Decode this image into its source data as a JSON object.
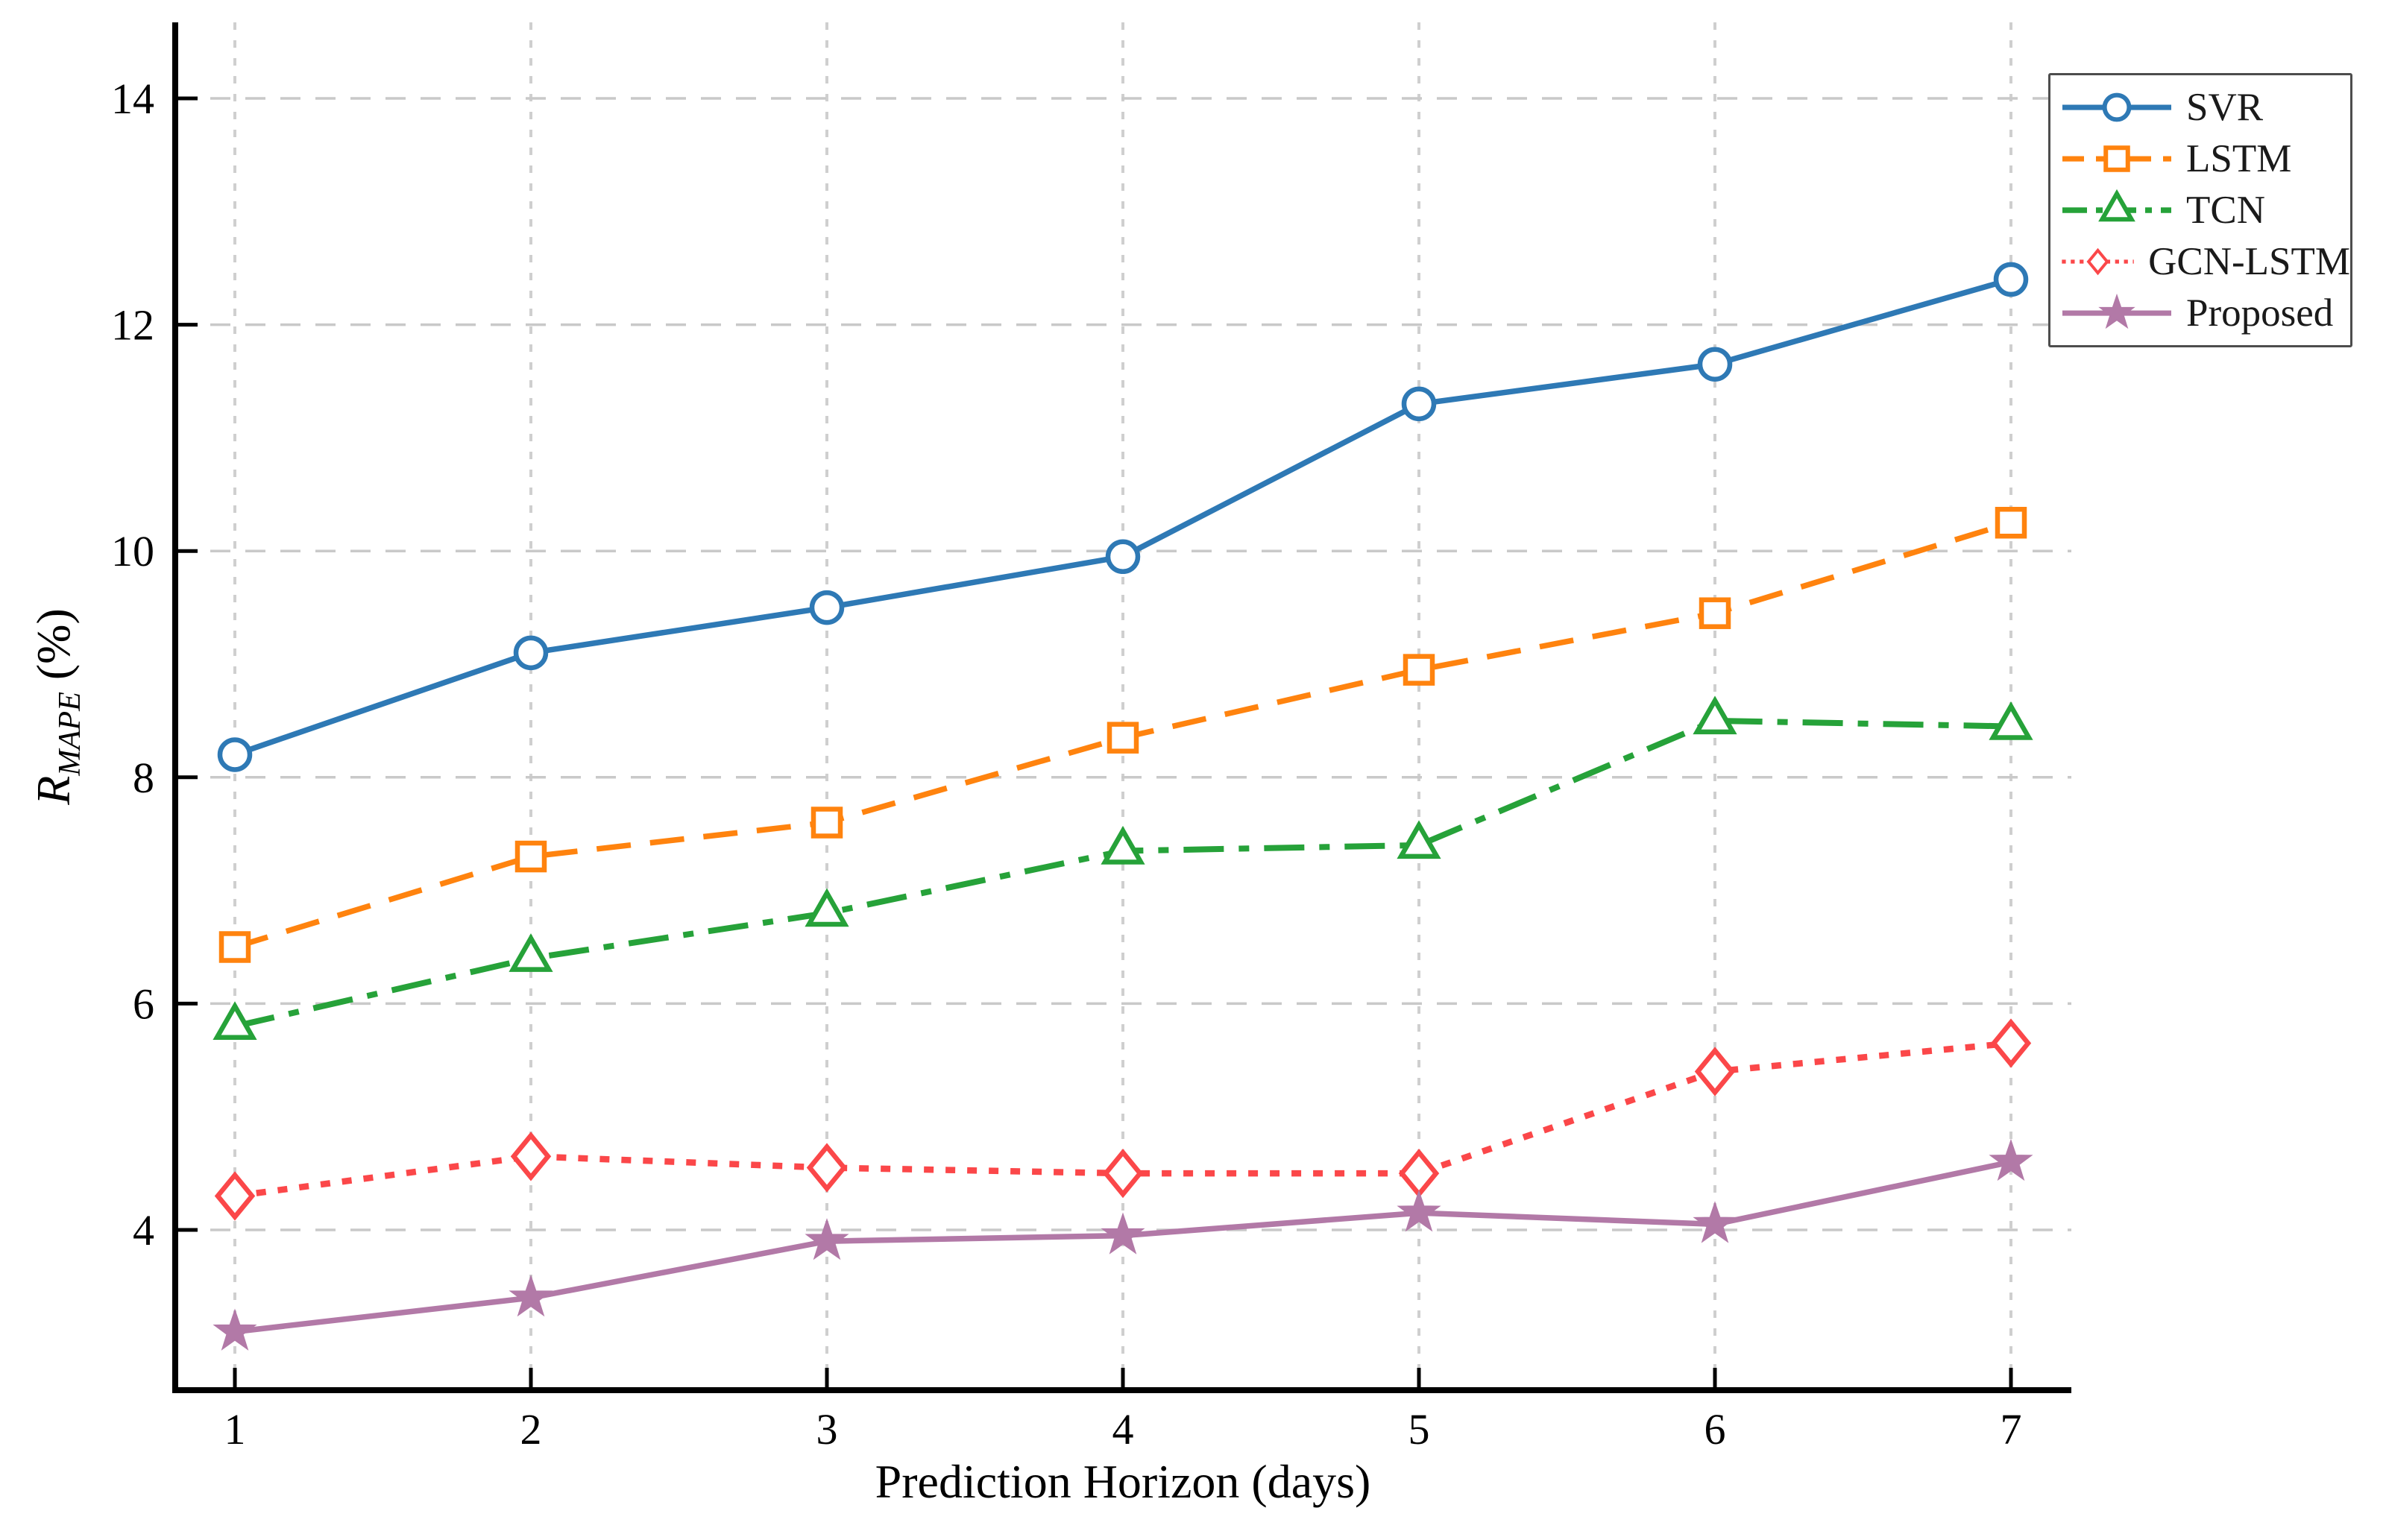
{
  "figure": {
    "xlabel": "Prediction Horizon (days)",
    "ylabel": {
      "prefix": "R",
      "sub": "MAPE",
      "suffix": " (%)"
    }
  },
  "chart_data": {
    "type": "line",
    "x": [
      1,
      2,
      3,
      4,
      5,
      6,
      7
    ],
    "x_tick_labels": [
      "1",
      "2",
      "3",
      "4",
      "5",
      "6",
      "7"
    ],
    "y_ticks": [
      4,
      6,
      8,
      10,
      12,
      14
    ],
    "xlabel": "Prediction Horizon (days)",
    "ylabel": "R_MAPE (%)",
    "xlim": [
      0.8,
      7.2
    ],
    "ylim": [
      2.6,
      14.7
    ],
    "grid": true,
    "legend_position": "upper right",
    "series": [
      {
        "name": "SVR",
        "color": "#2e79b5",
        "marker": "circle",
        "linestyle": "solid",
        "values": [
          8.2,
          9.1,
          9.5,
          9.95,
          11.3,
          11.65,
          12.4
        ]
      },
      {
        "name": "LSTM",
        "color": "#ff830e",
        "marker": "square",
        "linestyle": "dashed",
        "values": [
          6.5,
          7.3,
          7.6,
          8.35,
          8.95,
          9.45,
          10.25
        ]
      },
      {
        "name": "TCN",
        "color": "#26a239",
        "marker": "triangle",
        "linestyle": "dashdot",
        "values": [
          5.8,
          6.4,
          6.8,
          7.35,
          7.4,
          8.5,
          8.45
        ]
      },
      {
        "name": "GCN-LSTM",
        "color": "#fb4749",
        "marker": "diamond",
        "linestyle": "dotted",
        "values": [
          4.3,
          4.65,
          4.55,
          4.5,
          4.5,
          5.4,
          5.65
        ]
      },
      {
        "name": "Proposed",
        "color": "#b279a7",
        "marker": "star",
        "linestyle": "solid",
        "values": [
          3.1,
          3.4,
          3.9,
          3.95,
          4.15,
          4.05,
          4.6
        ]
      }
    ],
    "grid_color": "#c9c9c9",
    "vgrid_color": "#cfcfcf",
    "axis_color": "#000000"
  }
}
